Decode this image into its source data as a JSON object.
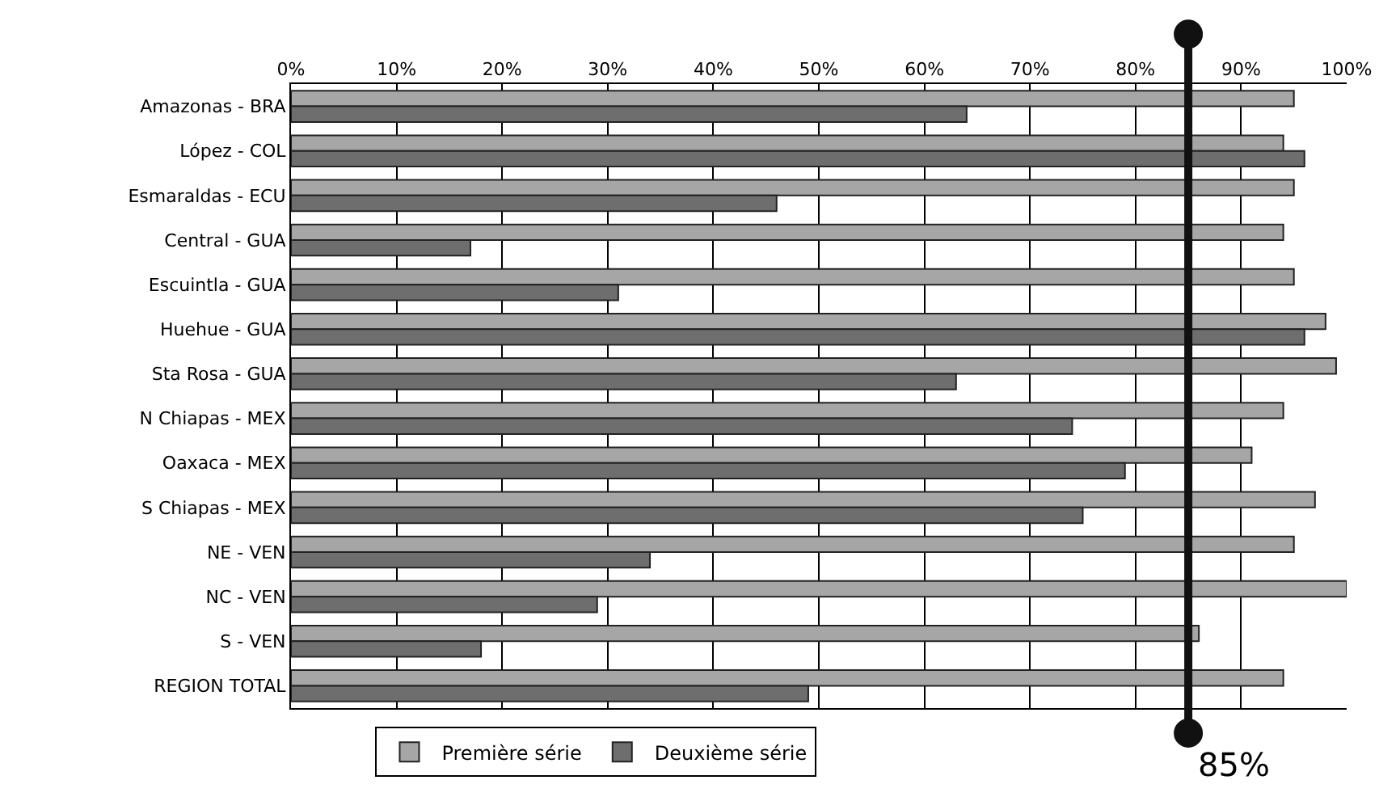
{
  "chart_data": {
    "type": "bar",
    "orientation": "horizontal",
    "categories": [
      "Amazonas - BRA",
      "López - COL",
      "Esmaraldas - ECU",
      "Central - GUA",
      "Escuintla - GUA",
      "Huehue - GUA",
      "Sta Rosa - GUA",
      "N Chiapas - MEX",
      "Oaxaca - MEX",
      "S Chiapas - MEX",
      "NE - VEN",
      "NC - VEN",
      "S - VEN",
      "REGION TOTAL"
    ],
    "series": [
      {
        "name": "Première série",
        "color": "#a6a6a6",
        "values": [
          95,
          94,
          95,
          94,
          95,
          98,
          99,
          94,
          91,
          97,
          95,
          100,
          86,
          94
        ]
      },
      {
        "name": "Deuxième série",
        "color": "#6e6e6e",
        "values": [
          64,
          96,
          46,
          17,
          31,
          96,
          63,
          74,
          79,
          75,
          34,
          29,
          18,
          49
        ]
      }
    ],
    "xlim": [
      0,
      100
    ],
    "xticks": [
      {
        "value": 0,
        "label": "0%"
      },
      {
        "value": 10,
        "label": "10%"
      },
      {
        "value": 20,
        "label": "20%"
      },
      {
        "value": 30,
        "label": "30%"
      },
      {
        "value": 40,
        "label": "40%"
      },
      {
        "value": 50,
        "label": "50%"
      },
      {
        "value": 60,
        "label": "60%"
      },
      {
        "value": 70,
        "label": "70%"
      },
      {
        "value": 80,
        "label": "80%"
      },
      {
        "value": 90,
        "label": "90%"
      },
      {
        "value": 100,
        "label": "100%"
      }
    ],
    "ref_lines": [
      {
        "axis": "x",
        "value": 85,
        "label": "85%",
        "color": "#111111"
      }
    ],
    "grid": "x",
    "legend": "bottom"
  }
}
